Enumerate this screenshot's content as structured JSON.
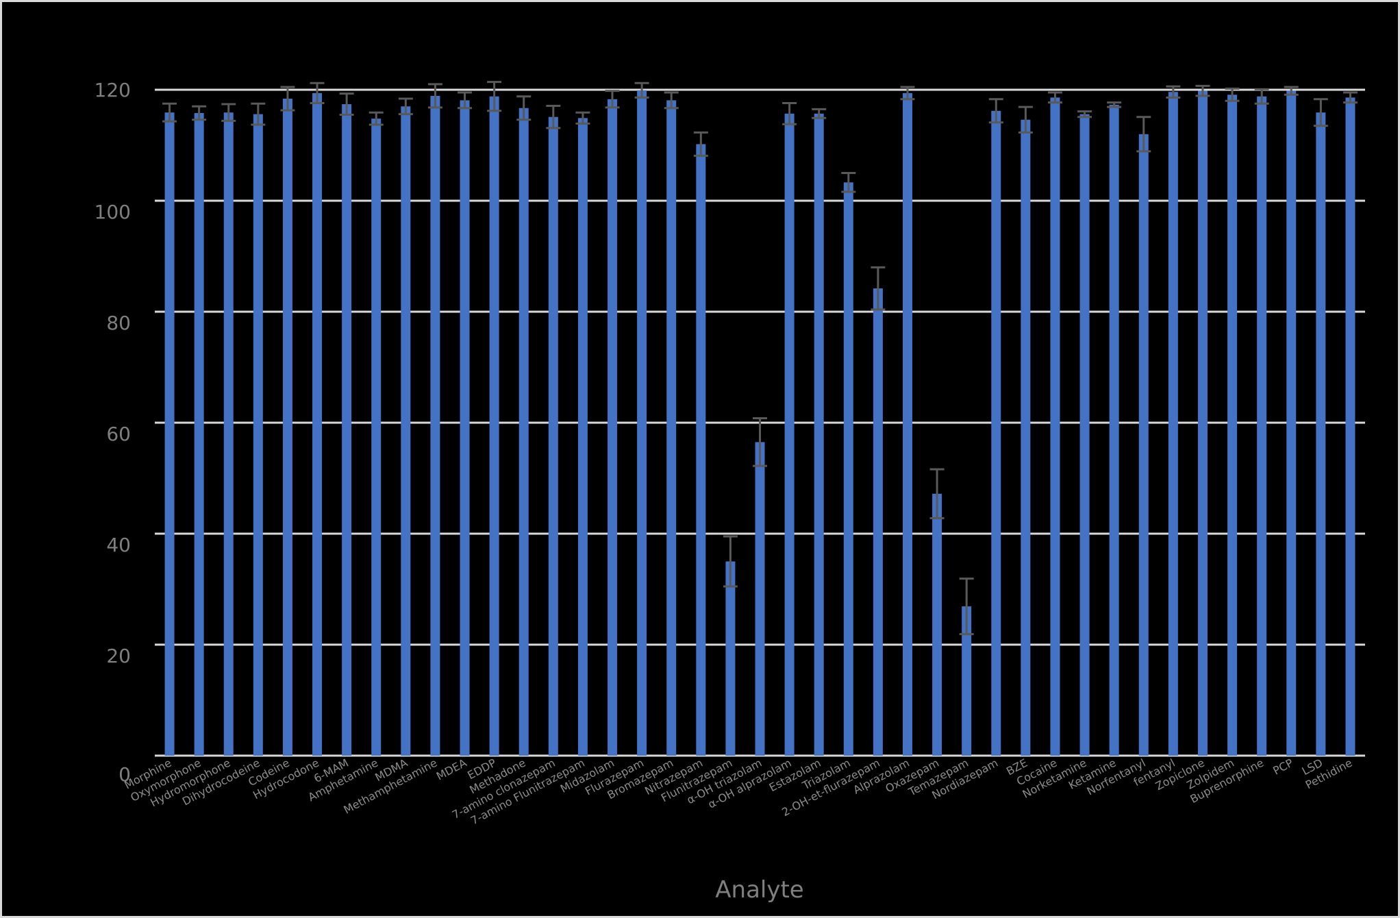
{
  "chart_data": {
    "type": "bar",
    "title": "",
    "xlabel": "Analyte",
    "ylabel": "",
    "ylim": [
      0,
      120
    ],
    "yticks": [
      0,
      20,
      40,
      60,
      80,
      100,
      120
    ],
    "grid": true,
    "legend": null,
    "bar_color": "#4472C4",
    "errorbar_color": "#595959",
    "gridline_color": "#d9d9d9",
    "background_color": "#000000",
    "categories": [
      "Morphine",
      "Oxymorphone",
      "Hydromorphone",
      "Dihydrocodeine",
      "Codeine",
      "Hydrocodone",
      "6-MAM",
      "Amphetamine",
      "MDMA",
      "Methamphetamine",
      "MDEA",
      "EDDP",
      "Methadone",
      "7-amino clonazepam",
      "7-amino Flunitrazepam",
      "Midazolam",
      "Flurazepam",
      "Bromazepam",
      "Nitrazepam",
      "Flunitrazepam",
      "α-OH triazolam",
      "α-OH alprazolam",
      "Estazolam",
      "Triazolam",
      "2-OH-et-flurazepam",
      "Alprazolam",
      "Oxazepam",
      "Temazepam",
      "Nordiazepam",
      "BZE",
      "Cocaine",
      "Norketamine",
      "Ketamine",
      "Norfentanyl",
      "fentanyl",
      "Zopiclone",
      "Zolpidem",
      "Buprenorphine",
      "PCP",
      "LSD",
      "Pethidine"
    ],
    "values": [
      115.9,
      115.8,
      115.9,
      115.6,
      118.4,
      119.4,
      117.4,
      114.8,
      117.0,
      118.9,
      118.1,
      118.8,
      116.7,
      115.1,
      114.9,
      118.3,
      119.9,
      118.1,
      110.2,
      35.0,
      56.5,
      115.7,
      115.7,
      103.3,
      84.2,
      119.4,
      47.2,
      26.9,
      116.2,
      114.6,
      118.6,
      115.6,
      117.3,
      112.0,
      119.6,
      119.8,
      119.1,
      118.8,
      119.8,
      115.9,
      118.6
    ],
    "errors": [
      1.6,
      1.2,
      1.5,
      1.9,
      2.1,
      1.8,
      1.9,
      1.1,
      1.4,
      2.1,
      1.4,
      2.6,
      2.1,
      2.0,
      1.0,
      1.5,
      1.3,
      1.4,
      2.1,
      4.5,
      4.3,
      1.9,
      0.8,
      1.7,
      3.8,
      1.1,
      4.4,
      5.0,
      2.1,
      2.3,
      0.9,
      0.5,
      0.4,
      3.1,
      1.0,
      0.9,
      1.1,
      1.3,
      0.7,
      2.4,
      0.9
    ]
  }
}
